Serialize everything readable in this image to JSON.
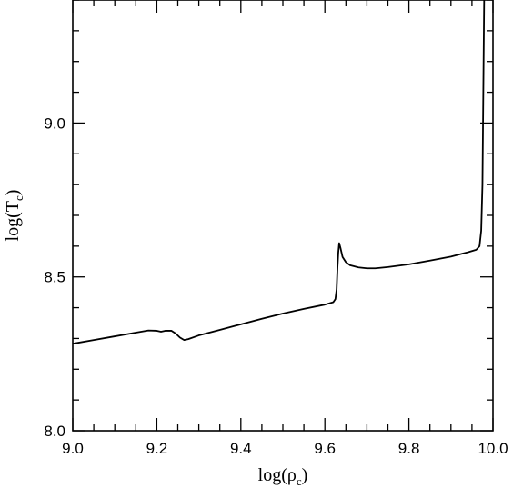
{
  "chart_data": {
    "type": "line",
    "xlabel": "log(ρ",
    "xlabel_sub": "c",
    "xlabel_close": ")",
    "ylabel": "log(T",
    "ylabel_sub": "c",
    "ylabel_close": ")",
    "xlim": [
      9.0,
      10.0
    ],
    "ylim": [
      8.0,
      9.4
    ],
    "grid": false,
    "x_ticks": [
      {
        "value": 9.0,
        "label": "9.0"
      },
      {
        "value": 9.2,
        "label": "9.2"
      },
      {
        "value": 9.4,
        "label": "9.4"
      },
      {
        "value": 9.6,
        "label": "9.6"
      },
      {
        "value": 9.8,
        "label": "9.8"
      },
      {
        "value": 10.0,
        "label": "10.0"
      }
    ],
    "y_ticks": [
      {
        "value": 8.0,
        "label": "8.0"
      },
      {
        "value": 8.5,
        "label": "8.5"
      },
      {
        "value": 9.0,
        "label": "9.0"
      }
    ],
    "x_minor_step": 0.05,
    "y_minor_step": 0.1,
    "series": [
      {
        "color": "#000000",
        "points": [
          [
            9.0,
            8.283
          ],
          [
            9.05,
            8.295
          ],
          [
            9.1,
            8.307
          ],
          [
            9.15,
            8.319
          ],
          [
            9.18,
            8.326
          ],
          [
            9.2,
            8.325
          ],
          [
            9.21,
            8.322
          ],
          [
            9.22,
            8.325
          ],
          [
            9.235,
            8.325
          ],
          [
            9.245,
            8.316
          ],
          [
            9.255,
            8.303
          ],
          [
            9.265,
            8.295
          ],
          [
            9.275,
            8.298
          ],
          [
            9.3,
            8.31
          ],
          [
            9.35,
            8.328
          ],
          [
            9.4,
            8.346
          ],
          [
            9.45,
            8.364
          ],
          [
            9.5,
            8.381
          ],
          [
            9.55,
            8.396
          ],
          [
            9.6,
            8.41
          ],
          [
            9.62,
            8.418
          ],
          [
            9.625,
            8.428
          ],
          [
            9.628,
            8.46
          ],
          [
            9.63,
            8.53
          ],
          [
            9.632,
            8.58
          ],
          [
            9.634,
            8.61
          ],
          [
            9.637,
            8.595
          ],
          [
            9.642,
            8.565
          ],
          [
            9.65,
            8.548
          ],
          [
            9.66,
            8.538
          ],
          [
            9.68,
            8.531
          ],
          [
            9.7,
            8.528
          ],
          [
            9.72,
            8.528
          ],
          [
            9.75,
            8.532
          ],
          [
            9.8,
            8.541
          ],
          [
            9.85,
            8.553
          ],
          [
            9.9,
            8.566
          ],
          [
            9.94,
            8.58
          ],
          [
            9.96,
            8.588
          ],
          [
            9.968,
            8.6
          ],
          [
            9.972,
            8.65
          ],
          [
            9.975,
            8.8
          ],
          [
            9.977,
            9.1
          ],
          [
            9.979,
            9.4
          ]
        ]
      }
    ]
  }
}
